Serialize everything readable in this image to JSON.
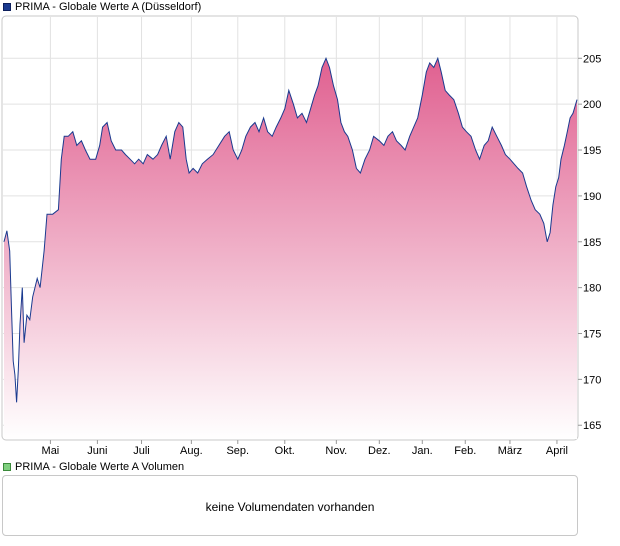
{
  "legend": {
    "price_label": "PRIMA - Globale Werte A (Düsseldorf)",
    "price_color": "#1a3a8f",
    "volume_label": "PRIMA - Globale Werte A Volumen",
    "volume_color": "#7fcf7f"
  },
  "volume_panel": {
    "message": "keine Volumendaten vorhanden"
  },
  "chart_data": {
    "type": "area",
    "line_color": "#1a3a8f",
    "fill_color_top": "#e06090",
    "fill_color_bottom": "#ffffff",
    "ylim": [
      163.5,
      209.5
    ],
    "yticks": [
      165,
      170,
      175,
      180,
      185,
      190,
      195,
      200,
      205
    ],
    "xlim": [
      0,
      1
    ],
    "xtick_labels": [
      "Mai",
      "Juni",
      "Juli",
      "Aug.",
      "Sep.",
      "Okt.",
      "Nov.",
      "Dez.",
      "Jan.",
      "Feb.",
      "März",
      "April"
    ],
    "xtick_positions": [
      0.081,
      0.163,
      0.24,
      0.327,
      0.408,
      0.49,
      0.58,
      0.655,
      0.73,
      0.805,
      0.883,
      0.965
    ],
    "grid": true,
    "series": [
      {
        "points": [
          [
            0.0,
            185.0
          ],
          [
            0.005,
            186.2
          ],
          [
            0.01,
            184.0
          ],
          [
            0.013,
            178.0
          ],
          [
            0.016,
            172.0
          ],
          [
            0.019,
            170.5
          ],
          [
            0.022,
            167.5
          ],
          [
            0.025,
            171.0
          ],
          [
            0.028,
            176.0
          ],
          [
            0.032,
            180.0
          ],
          [
            0.035,
            174.0
          ],
          [
            0.04,
            177.0
          ],
          [
            0.045,
            176.5
          ],
          [
            0.05,
            179.0
          ],
          [
            0.058,
            181.0
          ],
          [
            0.063,
            180.0
          ],
          [
            0.07,
            184.0
          ],
          [
            0.075,
            188.0
          ],
          [
            0.085,
            188.0
          ],
          [
            0.095,
            188.5
          ],
          [
            0.1,
            194.0
          ],
          [
            0.105,
            196.5
          ],
          [
            0.112,
            196.5
          ],
          [
            0.12,
            197.0
          ],
          [
            0.127,
            195.5
          ],
          [
            0.135,
            196.0
          ],
          [
            0.142,
            195.0
          ],
          [
            0.15,
            194.0
          ],
          [
            0.16,
            194.0
          ],
          [
            0.167,
            195.5
          ],
          [
            0.172,
            197.5
          ],
          [
            0.18,
            198.0
          ],
          [
            0.187,
            196.0
          ],
          [
            0.195,
            195.0
          ],
          [
            0.205,
            195.0
          ],
          [
            0.212,
            194.5
          ],
          [
            0.22,
            194.0
          ],
          [
            0.228,
            193.5
          ],
          [
            0.235,
            194.0
          ],
          [
            0.243,
            193.5
          ],
          [
            0.25,
            194.5
          ],
          [
            0.26,
            194.0
          ],
          [
            0.268,
            194.5
          ],
          [
            0.275,
            195.5
          ],
          [
            0.283,
            196.5
          ],
          [
            0.29,
            194.0
          ],
          [
            0.298,
            197.0
          ],
          [
            0.305,
            198.0
          ],
          [
            0.312,
            197.5
          ],
          [
            0.318,
            194.0
          ],
          [
            0.323,
            192.5
          ],
          [
            0.33,
            193.0
          ],
          [
            0.338,
            192.5
          ],
          [
            0.346,
            193.5
          ],
          [
            0.355,
            194.0
          ],
          [
            0.365,
            194.5
          ],
          [
            0.375,
            195.5
          ],
          [
            0.385,
            196.5
          ],
          [
            0.393,
            197.0
          ],
          [
            0.4,
            195.0
          ],
          [
            0.408,
            194.0
          ],
          [
            0.415,
            195.0
          ],
          [
            0.422,
            196.5
          ],
          [
            0.43,
            197.5
          ],
          [
            0.438,
            198.0
          ],
          [
            0.445,
            197.0
          ],
          [
            0.453,
            198.5
          ],
          [
            0.46,
            197.0
          ],
          [
            0.468,
            196.5
          ],
          [
            0.475,
            197.5
          ],
          [
            0.483,
            198.5
          ],
          [
            0.49,
            199.5
          ],
          [
            0.497,
            201.5
          ],
          [
            0.505,
            200.0
          ],
          [
            0.512,
            198.5
          ],
          [
            0.52,
            199.0
          ],
          [
            0.528,
            198.0
          ],
          [
            0.535,
            199.5
          ],
          [
            0.542,
            201.0
          ],
          [
            0.548,
            202.0
          ],
          [
            0.555,
            204.0
          ],
          [
            0.562,
            205.0
          ],
          [
            0.568,
            204.0
          ],
          [
            0.575,
            202.0
          ],
          [
            0.582,
            200.5
          ],
          [
            0.588,
            198.0
          ],
          [
            0.594,
            197.0
          ],
          [
            0.6,
            196.5
          ],
          [
            0.608,
            195.0
          ],
          [
            0.615,
            193.0
          ],
          [
            0.622,
            192.5
          ],
          [
            0.63,
            194.0
          ],
          [
            0.638,
            195.0
          ],
          [
            0.645,
            196.5
          ],
          [
            0.655,
            196.0
          ],
          [
            0.663,
            195.5
          ],
          [
            0.67,
            196.5
          ],
          [
            0.678,
            197.0
          ],
          [
            0.685,
            196.0
          ],
          [
            0.693,
            195.5
          ],
          [
            0.7,
            195.0
          ],
          [
            0.708,
            196.5
          ],
          [
            0.715,
            197.5
          ],
          [
            0.722,
            198.5
          ],
          [
            0.73,
            201.0
          ],
          [
            0.737,
            203.5
          ],
          [
            0.743,
            204.5
          ],
          [
            0.75,
            204.0
          ],
          [
            0.757,
            205.0
          ],
          [
            0.763,
            203.5
          ],
          [
            0.77,
            201.5
          ],
          [
            0.777,
            201.0
          ],
          [
            0.785,
            200.5
          ],
          [
            0.793,
            199.0
          ],
          [
            0.8,
            197.5
          ],
          [
            0.807,
            197.0
          ],
          [
            0.815,
            196.5
          ],
          [
            0.823,
            195.0
          ],
          [
            0.83,
            194.0
          ],
          [
            0.838,
            195.5
          ],
          [
            0.845,
            196.0
          ],
          [
            0.852,
            197.5
          ],
          [
            0.86,
            196.5
          ],
          [
            0.868,
            195.5
          ],
          [
            0.875,
            194.5
          ],
          [
            0.883,
            194.0
          ],
          [
            0.89,
            193.5
          ],
          [
            0.897,
            193.0
          ],
          [
            0.905,
            192.5
          ],
          [
            0.912,
            191.0
          ],
          [
            0.92,
            189.5
          ],
          [
            0.927,
            188.5
          ],
          [
            0.935,
            188.0
          ],
          [
            0.942,
            187.0
          ],
          [
            0.948,
            185.0
          ],
          [
            0.953,
            186.0
          ],
          [
            0.958,
            189.0
          ],
          [
            0.963,
            191.0
          ],
          [
            0.968,
            192.0
          ],
          [
            0.972,
            194.0
          ],
          [
            0.978,
            195.5
          ],
          [
            0.983,
            197.0
          ],
          [
            0.988,
            198.5
          ],
          [
            0.993,
            199.0
          ],
          [
            1.0,
            200.5
          ]
        ]
      }
    ]
  }
}
